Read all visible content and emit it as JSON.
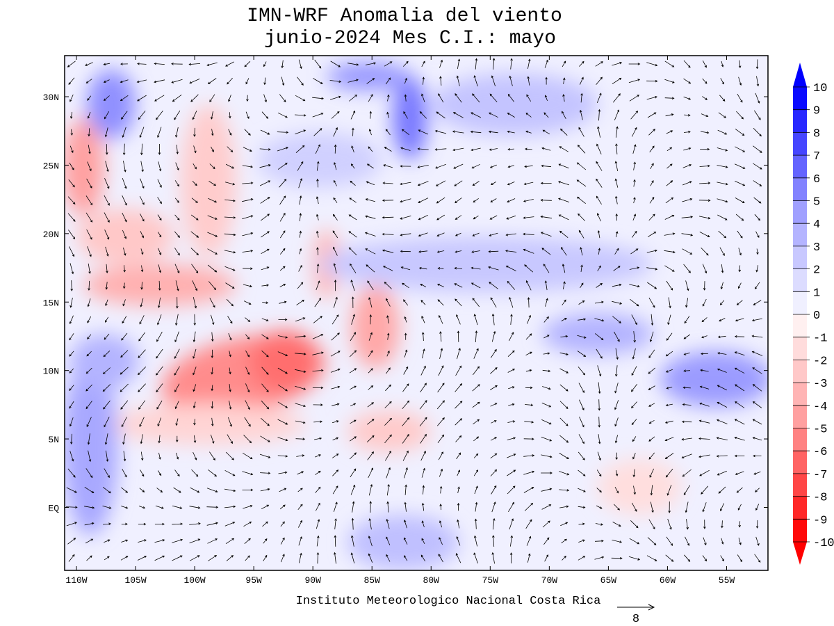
{
  "title": [
    "IMN-WRF Anomalia del viento",
    "junio-2024 Mes C.I.: mayo"
  ],
  "map": {
    "lon_range": [
      -111,
      -51.5
    ],
    "lat_range": [
      -4.6,
      33
    ],
    "lon_ticks": [
      {
        "value": -110,
        "label": "110W"
      },
      {
        "value": -105,
        "label": "105W"
      },
      {
        "value": -100,
        "label": "100W"
      },
      {
        "value": -95,
        "label": "95W"
      },
      {
        "value": -90,
        "label": "90W"
      },
      {
        "value": -85,
        "label": "85W"
      },
      {
        "value": -80,
        "label": "80W"
      },
      {
        "value": -75,
        "label": "75W"
      },
      {
        "value": -70,
        "label": "70W"
      },
      {
        "value": -65,
        "label": "65W"
      },
      {
        "value": -60,
        "label": "60W"
      },
      {
        "value": -55,
        "label": "55W"
      }
    ],
    "lat_ticks": [
      {
        "value": 30,
        "label": "30N"
      },
      {
        "value": 25,
        "label": "25N"
      },
      {
        "value": 20,
        "label": "20N"
      },
      {
        "value": 15,
        "label": "15N"
      },
      {
        "value": 10,
        "label": "10N"
      },
      {
        "value": 5,
        "label": "5N"
      },
      {
        "value": 0,
        "label": "EQ"
      }
    ]
  },
  "colorbar": {
    "levels": [
      10,
      9,
      8,
      7,
      6,
      5,
      4,
      3,
      2,
      1,
      0,
      -1,
      -2,
      -3,
      -4,
      -5,
      -6,
      -7,
      -8,
      -9,
      -10
    ],
    "colors": [
      "#0a0aff",
      "#2828ff",
      "#4646ff",
      "#6464ff",
      "#8282ff",
      "#a0a0ff",
      "#b4b4ff",
      "#c8c8ff",
      "#dcdcff",
      "#f0f0ff",
      "#fff0f0",
      "#ffdcdc",
      "#ffc8c8",
      "#ffb4b4",
      "#ffa0a0",
      "#ff8282",
      "#ff6464",
      "#ff4646",
      "#ff2828",
      "#ff0a0a"
    ],
    "over_color": "#0000ff",
    "under_color": "#ff0000"
  },
  "footer": "Instituto Meteorologico Nacional Costa Rica",
  "vector_scale": 8
}
